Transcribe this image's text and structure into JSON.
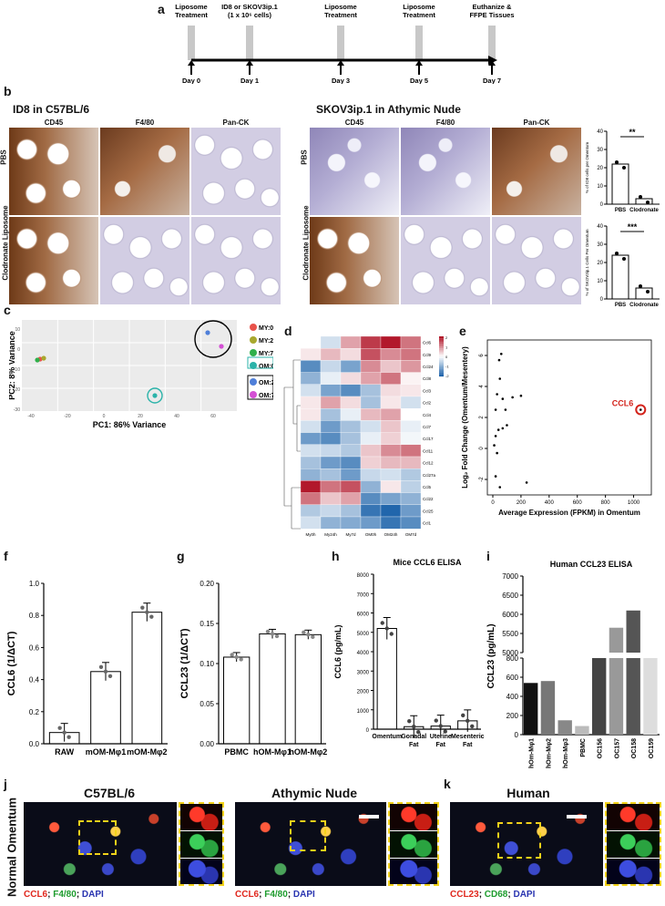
{
  "panel_labels": {
    "a": "a",
    "b": "b",
    "c": "c",
    "d": "d",
    "e": "e",
    "f": "f",
    "g": "g",
    "h": "h",
    "i": "i",
    "j": "j",
    "k": "k"
  },
  "timeline": {
    "events": [
      {
        "top": "Liposome\nTreatment",
        "day": "Day 0"
      },
      {
        "top": "ID8 or SKOV3ip.1\n(1 x 10⁶ cells)",
        "day": "Day 1"
      },
      {
        "top": "Liposome\nTreatment",
        "day": "Day 3"
      },
      {
        "top": "Liposome\nTreatment",
        "day": "Day 5"
      },
      {
        "top": "Euthanize &\nFFPE Tissues",
        "day": "Day 7"
      }
    ]
  },
  "panel_b": {
    "left_title": "ID8 in C57BL/6",
    "right_title": "SKOV3ip.1 in Athymic Nude",
    "stains": [
      "CD45",
      "F4/80",
      "Pan-CK"
    ],
    "row_labels": [
      "PBS",
      "Clodronate Liposome"
    ],
    "bar_top": {
      "ylabel": "% of ID8 cells per Omentum",
      "sig": "**"
    },
    "bar_bottom": {
      "ylabel": "% of SKOV3ip.1 Cells Per Omentum",
      "sig": "***"
    }
  },
  "panel_c": {
    "xlabel": "PC1: 86% Variance",
    "ylabel": "PC2: 8% Variance",
    "legend": [
      "MY:0h",
      "MY:24h",
      "MY:7d",
      "OM:0h",
      "OM:24h",
      "OM:7d"
    ],
    "legend_colors": [
      "#e8524a",
      "#a8a82e",
      "#2fb04a",
      "#2bb3a9",
      "#4f7fd9",
      "#d44fd4"
    ]
  },
  "panel_d": {
    "rows": [
      "Ccl6",
      "Ccl9",
      "Ccl24",
      "Ccl8",
      "Ccl3",
      "Ccl2",
      "Ccl4",
      "Ccl7",
      "Ccl17",
      "Ccl11",
      "Ccl12",
      "Ccl27a",
      "Ccl5",
      "Ccl22",
      "Ccl25",
      "Ccl1"
    ],
    "cols": [
      "My0h",
      "My24h",
      "My7d",
      "OM0h",
      "OM24h",
      "OM7d"
    ],
    "scale_ticks": [
      "2",
      "1",
      "0",
      "-1",
      "-2"
    ]
  },
  "panel_e": {
    "xlabel": "Average Expression (FPKM) in Omentum",
    "ylabel": "Log₂ Fold Change (Omentum/Mesentery)",
    "highlight": "CCL6",
    "xticks": [
      "0",
      "200",
      "400",
      "600",
      "800",
      "1000"
    ],
    "yticks": [
      "-2",
      "0",
      "2",
      "4",
      "6"
    ]
  },
  "chart_data": [
    {
      "type": "bar",
      "title": "",
      "xlabel": "",
      "ylabel": "% of ID8 cells per Omentum",
      "categories": [
        "PBS",
        "Clodronate"
      ],
      "values": [
        22,
        3
      ],
      "ylim": [
        0,
        40
      ],
      "yticks": [
        "0",
        "10",
        "20",
        "30",
        "40"
      ]
    },
    {
      "type": "bar",
      "title": "",
      "xlabel": "",
      "ylabel": "% of SKOV3ip.1 Cells Per Omentum",
      "categories": [
        "PBS",
        "Clodronate"
      ],
      "values": [
        24,
        6
      ],
      "ylim": [
        0,
        40
      ],
      "yticks": [
        "0",
        "10",
        "20",
        "30",
        "40"
      ]
    },
    {
      "type": "bar",
      "title": "",
      "xlabel": "",
      "ylabel": "CCL6 (1/ΔCT)",
      "categories": [
        "RAW",
        "mOM-Mφ1",
        "mOM-Mφ2"
      ],
      "values": [
        0.07,
        0.45,
        0.82
      ],
      "ylim": [
        0,
        1.0
      ],
      "yticks": [
        "0.0",
        "0.2",
        "0.4",
        "0.6",
        "0.8",
        "1.0"
      ]
    },
    {
      "type": "bar",
      "title": "",
      "xlabel": "",
      "ylabel": "CCL23 (1/ΔCT)",
      "categories": [
        "PBMC",
        "hOM-Mφ1",
        "hOM-Mφ2"
      ],
      "values": [
        0.108,
        0.137,
        0.136
      ],
      "ylim": [
        0,
        0.2
      ],
      "yticks": [
        "0.00",
        "0.05",
        "0.10",
        "0.15",
        "0.20"
      ]
    },
    {
      "type": "bar",
      "title": "Mice CCL6 ELISA",
      "xlabel": "",
      "ylabel": "CCL6 (pg/mL)",
      "categories": [
        "Omentum",
        "Gonadal Fat",
        "Uterine Fat",
        "Mesenteric Fat"
      ],
      "values": [
        5200,
        130,
        160,
        430
      ],
      "ylim": [
        0,
        8000
      ],
      "yticks": [
        "0",
        "1000",
        "2000",
        "3000",
        "4000",
        "5000",
        "6000",
        "7000",
        "8000"
      ]
    },
    {
      "type": "bar",
      "title": "Human CCL23 ELISA",
      "xlabel": "",
      "ylabel": "CCL23 (pg/mL)",
      "categories": [
        "hOm-Mφ1",
        "hOm-Mφ2",
        "hOm-Mφ3",
        "PBMC",
        "OC156",
        "OC157",
        "OC158",
        "OC159"
      ],
      "values": [
        540,
        560,
        150,
        90,
        4500,
        5650,
        6100,
        800
      ],
      "yticks_low": [
        "0",
        "200",
        "400",
        "600",
        "800"
      ],
      "yticks_high": [
        "5000",
        "5500",
        "6000",
        "6500",
        "7000"
      ]
    }
  ],
  "panel_j": {
    "col1": "C57BL/6",
    "col2": "Athymic Nude",
    "row": "Normal Omentum",
    "legend1": {
      "a": "CCL6",
      "b": "F4/80",
      "c": "DAPI"
    },
    "legend2": {
      "a": "CCL6",
      "b": "F4/80",
      "c": "DAPI"
    }
  },
  "panel_k": {
    "col": "Human",
    "legend": {
      "a": "CCL23",
      "b": "CD68",
      "c": "DAPI"
    }
  }
}
